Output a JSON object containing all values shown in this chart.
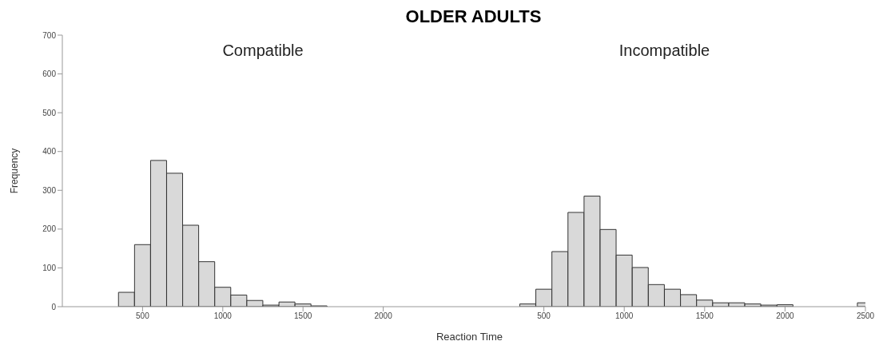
{
  "chart_data": [
    {
      "type": "histogram",
      "title": "OLDER ADULTS",
      "xlabel": "Reaction Time",
      "ylabel": "Frequency",
      "annotations": [
        "Compatible"
      ],
      "color": "#d9d9d9",
      "bins": [
        350,
        450,
        550,
        650,
        750,
        850,
        950,
        1050,
        1150,
        1250,
        1350,
        1450,
        1550,
        1650,
        1750,
        1850,
        1950,
        2050,
        2150,
        2250,
        2350,
        2450,
        2550
      ],
      "values": [
        37,
        160,
        377,
        344,
        210,
        116,
        50,
        30,
        16,
        4,
        12,
        7,
        2,
        0,
        0,
        0,
        0,
        0,
        0,
        0,
        0,
        null
      ],
      "xlim": [
        0,
        2500
      ],
      "xticks": [
        500,
        1000,
        1500,
        2000
      ],
      "ylim": [
        0,
        700
      ],
      "yticks": [
        0,
        100,
        200,
        300,
        400,
        500,
        600,
        700
      ],
      "grid": false
    },
    {
      "type": "histogram",
      "annotations": [
        "Incompatible"
      ],
      "color": "#d9d9d9",
      "bins": [
        350,
        450,
        550,
        650,
        750,
        850,
        950,
        1050,
        1150,
        1250,
        1350,
        1450,
        1550,
        1650,
        1750,
        1850,
        1950,
        2050,
        2150,
        2250,
        2350,
        2450,
        2550
      ],
      "values": [
        7,
        45,
        142,
        243,
        285,
        199,
        133,
        101,
        57,
        45,
        31,
        17,
        10,
        10,
        7,
        4,
        5,
        0,
        0,
        0,
        0,
        10
      ],
      "xlim": [
        0,
        2500
      ],
      "xticks": [
        500,
        1000,
        1500,
        2000,
        2500
      ],
      "ylim": [
        0,
        700
      ],
      "yticks": [
        0,
        100,
        200,
        300,
        400,
        500,
        600,
        700
      ],
      "grid": false,
      "tick_labels": "x"
    }
  ]
}
